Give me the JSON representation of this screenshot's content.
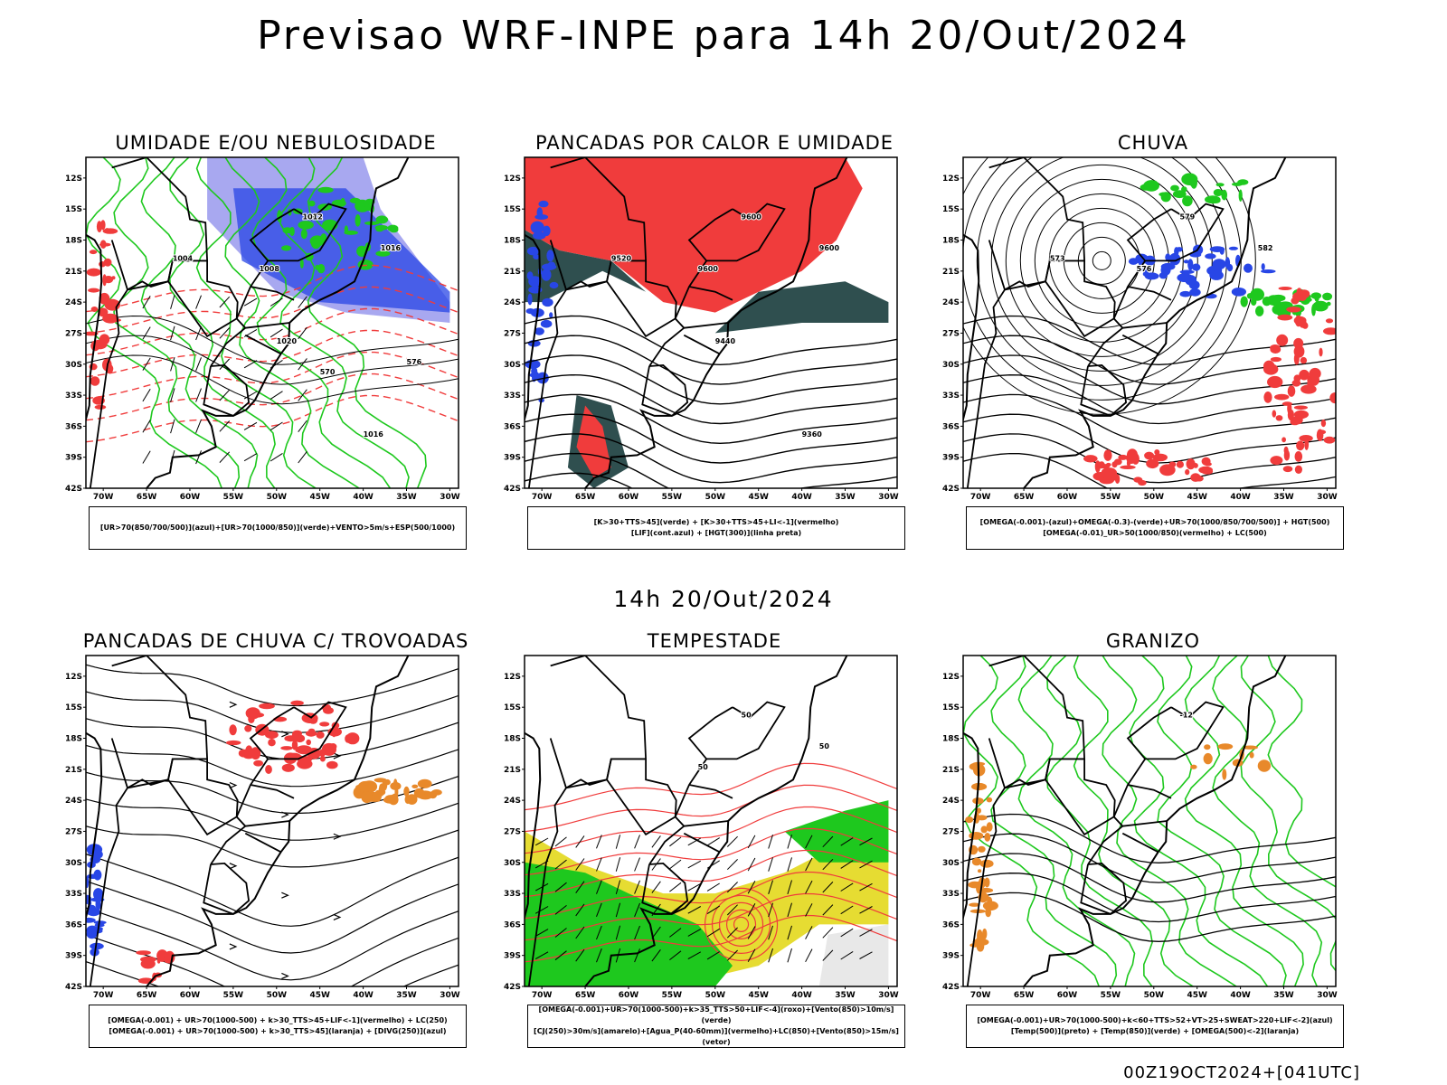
{
  "title": "Previsao WRF-INPE  para 14h 20/Out/2024",
  "mid_title": "14h 20/Out/2024",
  "footer": "00Z19OCT2024+[041UTC]",
  "lat_ticks": [
    "12S",
    "15S",
    "18S",
    "21S",
    "24S",
    "27S",
    "30S",
    "33S",
    "36S",
    "39S",
    "42S"
  ],
  "lon_ticks": [
    "70W",
    "65W",
    "60W",
    "55W",
    "50W",
    "45W",
    "40W",
    "35W",
    "30W"
  ],
  "colors": {
    "red": "#f03c3c",
    "green": "#1ec81e",
    "blue": "#2846e6",
    "lavender": "#a8a8f0",
    "darkteal": "#2f4f4f",
    "yellow": "#e6dc32",
    "orange": "#e8892a",
    "purple": "#a020f0",
    "gray": "#cccccc"
  },
  "panels": [
    {
      "id": "umidade",
      "title": "UMIDADE E/OU NEBULOSIDADE",
      "legend": [
        "[UR>70(850/700/500)](azul)+[UR>70(1000/850)](verde)+VENTO>5m/s+ESP(500/1000)"
      ],
      "labels": [
        "1012",
        "1016",
        "1008",
        "1004",
        "1020",
        "1016",
        "576",
        "570"
      ]
    },
    {
      "id": "pancadas-calor",
      "title": "PANCADAS POR CALOR E UMIDADE",
      "legend": [
        "[K>30+TTS>45](verde) + [K>30+TTS>45+LI<-1](vermelho)",
        "[LIF](cont.azul) + [HGT(300)](linha preta)"
      ],
      "labels": [
        "9600",
        "9600",
        "9600",
        "9520",
        "9440",
        "9360"
      ]
    },
    {
      "id": "chuva",
      "title": "CHUVA",
      "legend": [
        "[OMEGA(-0.001)-(azul)+OMEGA(-0.3)-(verde)+UR>70(1000/850/700/500)] + HGT(500)",
        "[OMEGA(-0.01)_UR>50(1000/850)(vermelho) + LC(500)"
      ],
      "labels": [
        "579",
        "582",
        "576",
        "573"
      ]
    },
    {
      "id": "trovoadas",
      "title": "PANCADAS DE CHUVA C/ TROVOADAS",
      "legend": [
        "[OMEGA(-0.001) + UR>70(1000-500) + k>30_TTS>45+LIF<-1](vermelho) + LC(250)",
        "[OMEGA(-0.001) + UR>70(1000-500) + k>30_TTS>45](laranja) + [DIVG(250)](azul)"
      ],
      "labels": []
    },
    {
      "id": "tempestade",
      "title": "TEMPESTADE",
      "legend": [
        "[OMEGA(-0.001)+UR>70(1000-500)+k>35_TTS>50+LIF<-4](roxo)+[Vento(850)>10m/s](verde)",
        "[CJ(250)>30m/s](amarelo)+[Agua_P(40-60mm)](vermelho)+LC(850)+[Vento(850)>15m/s](vetor)"
      ],
      "labels": [
        "50",
        "50",
        "50"
      ]
    },
    {
      "id": "granizo",
      "title": "GRANIZO",
      "legend": [
        "[OMEGA(-0.001)+UR>70(1000-500)+k<60+TTS>52+VT>25+SWEAT>220+LIF<-2](azul)",
        "[Temp(500)](preto) + [Temp(850)](verde) + [OMEGA(500)<-2](laranja)"
      ],
      "labels": [
        "-12"
      ]
    }
  ]
}
